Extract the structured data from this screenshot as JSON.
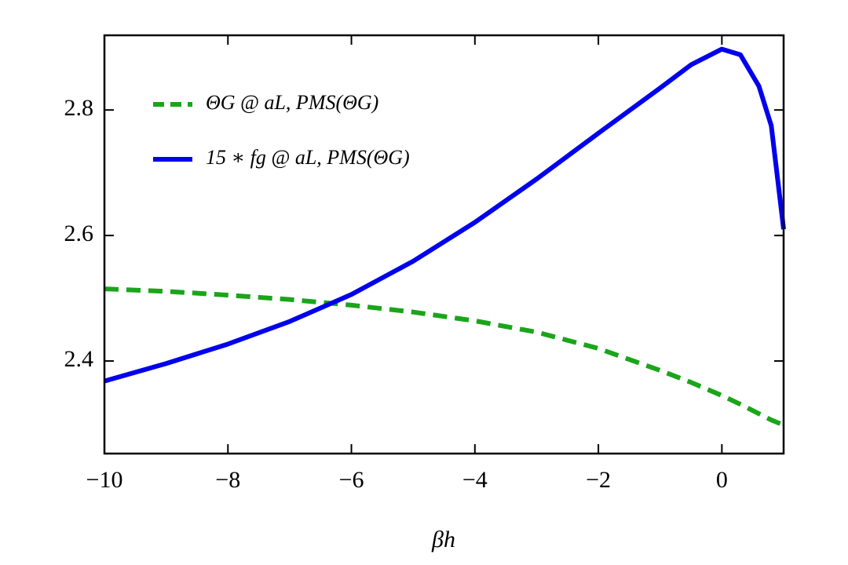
{
  "chart_data": {
    "type": "line",
    "x_label": "βh",
    "x": [
      -10,
      -9,
      -8,
      -7,
      -6,
      -5,
      -4,
      -3,
      -2,
      -1,
      -0.5,
      0,
      0.3,
      0.6,
      0.8,
      1
    ],
    "series": [
      {
        "name": "ΘG @ aL, PMS(ΘG)",
        "color": "#1aa51a",
        "dashed": true,
        "values": [
          2.515,
          2.511,
          2.505,
          2.498,
          2.489,
          2.478,
          2.464,
          2.446,
          2.42,
          2.385,
          2.366,
          2.345,
          2.331,
          2.316,
          2.306,
          2.298
        ]
      },
      {
        "name": "15 ∗ fg @ aL, PMS(ΘG)",
        "color": "#0000ee",
        "dashed": false,
        "values": [
          2.368,
          2.396,
          2.427,
          2.463,
          2.506,
          2.559,
          2.621,
          2.69,
          2.763,
          2.835,
          2.872,
          2.897,
          2.888,
          2.838,
          2.775,
          2.61
        ]
      }
    ],
    "xlim": [
      -10,
      1
    ],
    "ylim": [
      2.2525,
      2.919
    ],
    "xticks": [
      {
        "value": -10,
        "label": "−10"
      },
      {
        "value": -8,
        "label": "−8"
      },
      {
        "value": -6,
        "label": "−6"
      },
      {
        "value": -4,
        "label": "−4"
      },
      {
        "value": -2,
        "label": "−2"
      },
      0
    ],
    "yticks": [
      2.4,
      2.6,
      2.8
    ],
    "legend": "upper left"
  }
}
